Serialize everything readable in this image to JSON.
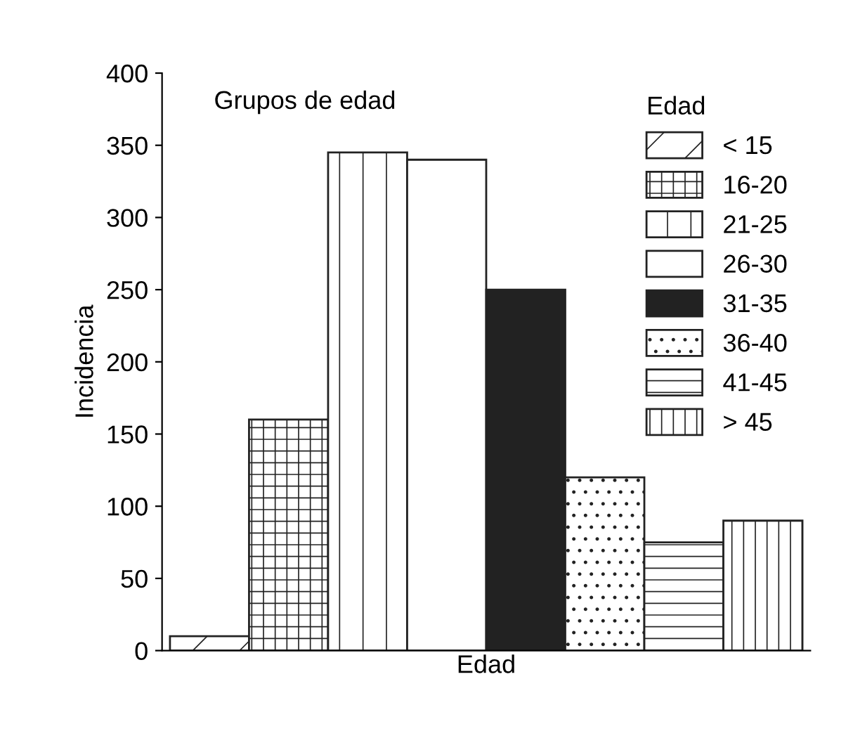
{
  "chart_data": {
    "type": "bar",
    "title": "Grupos de edad",
    "xlabel": "Edad",
    "ylabel": "Incidencia",
    "legend_title": "Edad",
    "categories": [
      null,
      null,
      null,
      null,
      null,
      null,
      null,
      null
    ],
    "series": [
      {
        "name": "< 15",
        "color": "#222222",
        "values": [
          10,
          null,
          null,
          null,
          null,
          null,
          null,
          null
        ]
      },
      {
        "name": "16-20",
        "color": "#222222",
        "values": [
          null,
          160,
          null,
          null,
          null,
          null,
          null,
          null
        ]
      },
      {
        "name": "21-25",
        "color": "#222222",
        "values": [
          null,
          null,
          345,
          null,
          null,
          null,
          null,
          null
        ]
      },
      {
        "name": "26-30",
        "color": "#ffffff",
        "values": [
          null,
          null,
          null,
          340,
          null,
          null,
          null,
          null
        ]
      },
      {
        "name": "31-35",
        "color": "#222222",
        "values": [
          null,
          null,
          null,
          null,
          250,
          null,
          null,
          null
        ]
      },
      {
        "name": "36-40",
        "color": "#222222",
        "values": [
          null,
          null,
          null,
          null,
          null,
          120,
          null,
          null
        ]
      },
      {
        "name": "41-45",
        "color": "#222222",
        "values": [
          null,
          null,
          null,
          null,
          null,
          null,
          75,
          null
        ]
      },
      {
        "name": "> 45",
        "color": "#222222",
        "values": [
          null,
          null,
          null,
          null,
          null,
          null,
          null,
          90
        ]
      }
    ],
    "ylim": [
      0,
      400
    ],
    "yticks": [
      0,
      50,
      100,
      150,
      200,
      250,
      300,
      350,
      400
    ],
    "tick_labels": "y",
    "legend": "top right",
    "grid": false
  }
}
